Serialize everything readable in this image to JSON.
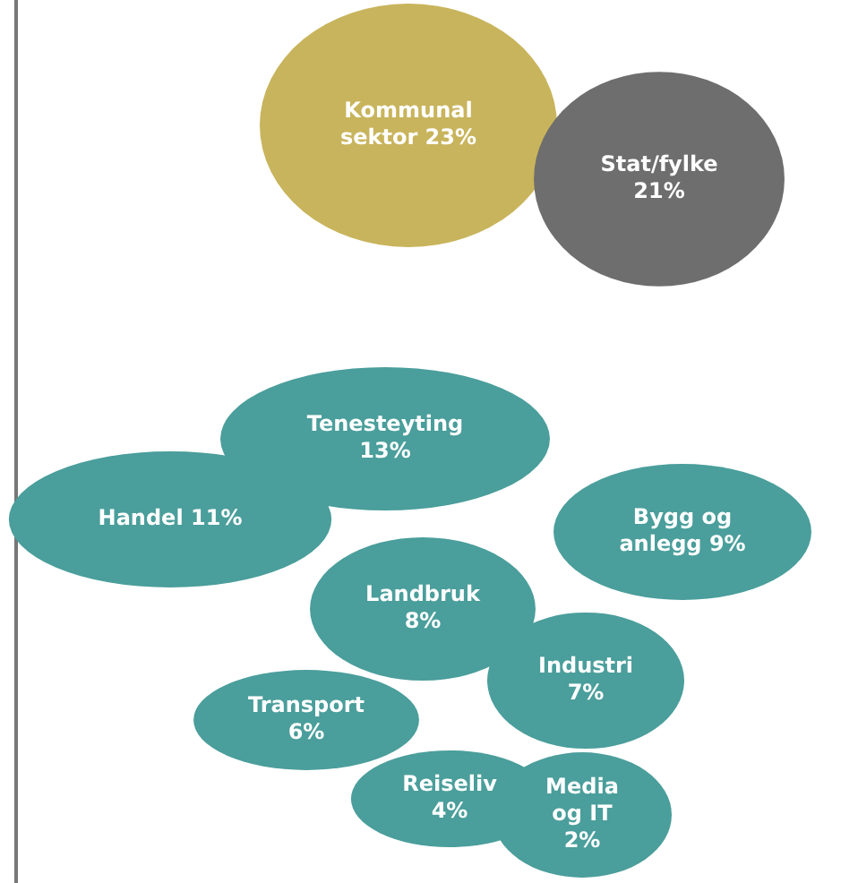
{
  "chart_data": {
    "type": "other",
    "categories": [
      "Kommunal sektor",
      "Stat/fylke",
      "Tenesteyting",
      "Handel",
      "Bygg og anlegg",
      "Landbruk",
      "Industri",
      "Transport",
      "Reiseliv",
      "Media og IT"
    ],
    "values": [
      23,
      21,
      13,
      11,
      9,
      8,
      7,
      6,
      4,
      2
    ],
    "value_labels": [
      "23%",
      "21%",
      "13%",
      "11%",
      "9%",
      "8%",
      "7%",
      "6%",
      "4%",
      "2%"
    ],
    "colors": [
      "#c8b45c",
      "#6e6e6e",
      "#4a9e9b",
      "#4a9e9b",
      "#4a9e9b",
      "#4a9e9b",
      "#4a9e9b",
      "#4a9e9b",
      "#4a9e9b",
      "#4a9e9b"
    ]
  }
}
